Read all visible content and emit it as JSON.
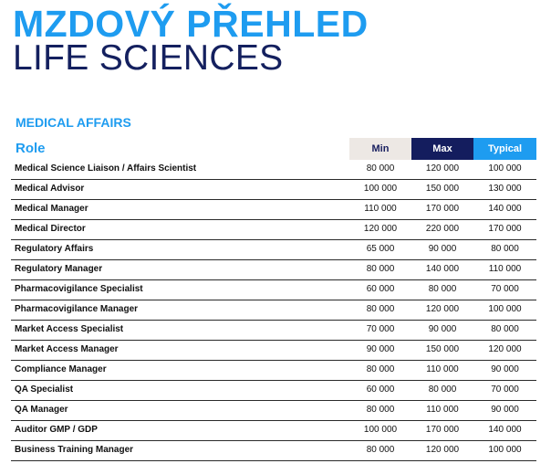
{
  "header": {
    "title": "MZDOVÝ PŘEHLED",
    "subtitle": "LIFE SCIENCES"
  },
  "section": {
    "heading": "MEDICAL AFFAIRS"
  },
  "colors": {
    "accent_blue": "#1e9cf0",
    "navy": "#141d5e",
    "min_header_bg": "#ede8e4"
  },
  "table": {
    "columns": {
      "role": "Role",
      "min": "Min",
      "max": "Max",
      "typical": "Typical"
    },
    "rows": [
      {
        "role": "Medical Science Liaison / Affairs Scientist",
        "min": "80 000",
        "max": "120 000",
        "typical": "100 000"
      },
      {
        "role": "Medical Advisor",
        "min": "100 000",
        "max": "150 000",
        "typical": "130 000"
      },
      {
        "role": "Medical Manager",
        "min": "110 000",
        "max": "170 000",
        "typical": "140 000"
      },
      {
        "role": "Medical Director",
        "min": "120 000",
        "max": "220 000",
        "typical": "170 000"
      },
      {
        "role": "Regulatory Affairs",
        "min": "65 000",
        "max": "90 000",
        "typical": "80 000"
      },
      {
        "role": "Regulatory Manager",
        "min": "80 000",
        "max": "140 000",
        "typical": "110 000"
      },
      {
        "role": "Pharmacovigilance Specialist",
        "min": "60 000",
        "max": "80 000",
        "typical": "70 000"
      },
      {
        "role": "Pharmacovigilance Manager",
        "min": "80 000",
        "max": "120 000",
        "typical": "100 000"
      },
      {
        "role": "Market Access Specialist",
        "min": "70 000",
        "max": "90 000",
        "typical": "80 000"
      },
      {
        "role": "Market Access Manager",
        "min": "90 000",
        "max": "150 000",
        "typical": "120 000"
      },
      {
        "role": "Compliance Manager",
        "min": "80 000",
        "max": "110 000",
        "typical": "90 000"
      },
      {
        "role": "QA Specialist",
        "min": "60 000",
        "max": "80 000",
        "typical": "70 000"
      },
      {
        "role": "QA  Manager",
        "min": "80 000",
        "max": "110 000",
        "typical": "90 000"
      },
      {
        "role": "Auditor GMP / GDP",
        "min": "100 000",
        "max": "170 000",
        "typical": "140 000"
      },
      {
        "role": "Business Training Manager",
        "min": "80 000",
        "max": "120 000",
        "typical": "100 000"
      }
    ]
  }
}
